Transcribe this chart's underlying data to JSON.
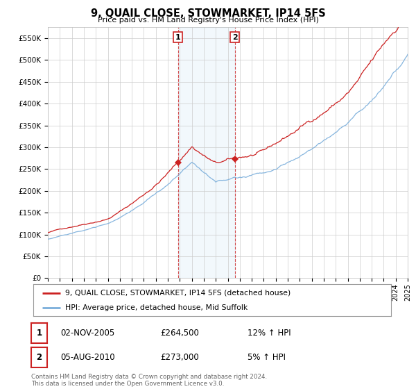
{
  "title": "9, QUAIL CLOSE, STOWMARKET, IP14 5FS",
  "subtitle": "Price paid vs. HM Land Registry's House Price Index (HPI)",
  "ylim": [
    0,
    575000
  ],
  "yticks": [
    0,
    50000,
    100000,
    150000,
    200000,
    250000,
    300000,
    350000,
    400000,
    450000,
    500000,
    550000
  ],
  "ytick_labels": [
    "£0",
    "£50K",
    "£100K",
    "£150K",
    "£200K",
    "£250K",
    "£300K",
    "£350K",
    "£400K",
    "£450K",
    "£500K",
    "£550K"
  ],
  "hpi_color": "#7aaedb",
  "price_color": "#cc2222",
  "sale1_year": 2005.84,
  "sale1_price": 264500,
  "sale2_year": 2010.58,
  "sale2_price": 273000,
  "legend_label1": "9, QUAIL CLOSE, STOWMARKET, IP14 5FS (detached house)",
  "legend_label2": "HPI: Average price, detached house, Mid Suffolk",
  "table_entries": [
    {
      "num": "1",
      "date": "02-NOV-2005",
      "price": "£264,500",
      "change": "12% ↑ HPI"
    },
    {
      "num": "2",
      "date": "05-AUG-2010",
      "price": "£273,000",
      "change": "5% ↑ HPI"
    }
  ],
  "footer": "Contains HM Land Registry data © Crown copyright and database right 2024.\nThis data is licensed under the Open Government Licence v3.0.",
  "background_color": "#ffffff",
  "grid_color": "#cccccc",
  "start_year": 1995,
  "end_year": 2025
}
